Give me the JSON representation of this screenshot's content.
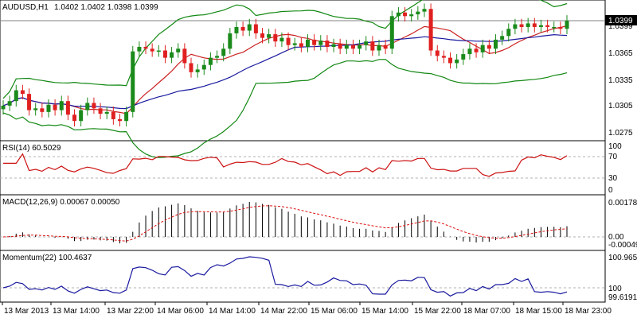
{
  "window": {
    "symbol": "AUDUSD,H1",
    "ohlc": "1.0402 1.0402 1.0398 1.0399"
  },
  "colors": {
    "bull": "#1a8a1a",
    "bear": "#e02020",
    "bollinger": "#118811",
    "ma_fast": "#cc2222",
    "ma_slow": "#1a1aa0",
    "rsi": "#cc1111",
    "macd_hist": "#000000",
    "macd_signal": "#dd1111",
    "momentum": "#1a1aa0",
    "grid": "#c0c0c0"
  },
  "price_pane": {
    "price_labels": [
      "1.0399",
      "1.0365",
      "1.0335",
      "1.0305",
      "1.0275"
    ],
    "current_price": "1.0399"
  },
  "rsi_pane": {
    "title": "RSI(14) 60.5029",
    "levels": [
      "100",
      "70",
      "30",
      "0"
    ]
  },
  "macd_pane": {
    "title": "MACD(12,26,9) 0.00067 0.00050",
    "levels": [
      "0.00178",
      "0.00",
      "-0.00049"
    ]
  },
  "momentum_pane": {
    "title": "Momentum(22) 100.4637",
    "levels": [
      "100.9651",
      "100",
      "99.6191"
    ]
  },
  "time_axis": [
    "13 Mar 2013",
    "13 Mar 14:00",
    "13 Mar 22:00",
    "14 Mar 06:00",
    "14 Mar 14:00",
    "14 Mar 22:00",
    "15 Mar 06:00",
    "15 Mar 14:00",
    "15 Mar 22:00",
    "18 Mar 07:00",
    "18 Mar 15:00",
    "18 Mar 23:00"
  ],
  "chart_data": {
    "type": "line",
    "title": "AUDUSD,H1",
    "candles_close": [
      1.0305,
      1.031,
      1.0322,
      1.0318,
      1.03,
      1.0302,
      1.0298,
      1.0306,
      1.03,
      1.031,
      1.0295,
      1.0288,
      1.03,
      1.0308,
      1.0302,
      1.0296,
      1.0298,
      1.029,
      1.0288,
      1.0298,
      1.0365,
      1.037,
      1.0368,
      1.0365,
      1.0366,
      1.0358,
      1.0364,
      1.0368,
      1.0352,
      1.0342,
      1.0345,
      1.035,
      1.0358,
      1.036,
      1.0368,
      1.0385,
      1.0392,
      1.0388,
      1.0395,
      1.0385,
      1.038,
      1.0384,
      1.0376,
      1.038,
      1.0372,
      1.0374,
      1.037,
      1.0378,
      1.0372,
      1.0377,
      1.037,
      1.0373,
      1.0368,
      1.0372,
      1.0368,
      1.0372,
      1.0376,
      1.0366,
      1.0372,
      1.0368,
      1.0404,
      1.0408,
      1.0404,
      1.0406,
      1.0409,
      1.0412,
      1.0366,
      1.036,
      1.0358,
      1.0352,
      1.0356,
      1.0362,
      1.0368,
      1.0364,
      1.0372,
      1.0368,
      1.0378,
      1.0382,
      1.039,
      1.0395,
      1.0392,
      1.0396,
      1.0392,
      1.0394,
      1.0392,
      1.0392,
      1.039,
      1.0399
    ],
    "rsi_value": 60.5029,
    "macd": [
      0.00067,
      0.0005
    ],
    "momentum_value": 100.4637
  }
}
